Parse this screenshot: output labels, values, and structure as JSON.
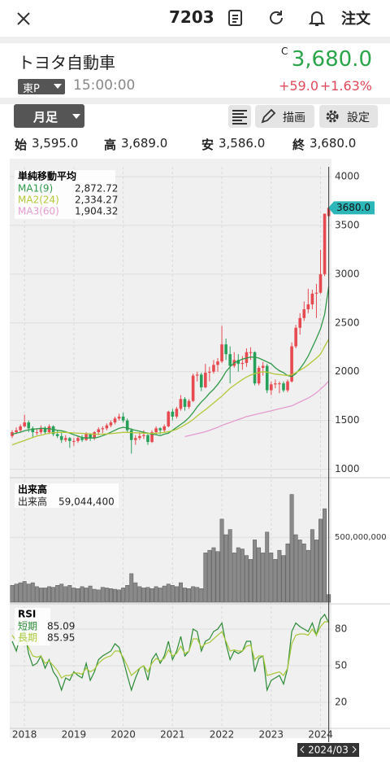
{
  "header": {
    "symbol": "7203",
    "order": "注文"
  },
  "quote": {
    "name": "トヨタ自動車",
    "flag": "C",
    "price": "3,680.0",
    "market": "東P",
    "time": "15:00:00",
    "change": "+59.0",
    "change_pct": "+1.63%"
  },
  "toolbar": {
    "period": "月足",
    "draw": "描画",
    "settings": "設定"
  },
  "ohlc": [
    {
      "label": "始",
      "value": "3,595.0"
    },
    {
      "label": "高",
      "value": "3,689.0"
    },
    {
      "label": "安",
      "value": "3,586.0"
    },
    {
      "label": "終",
      "value": "3,680.0"
    }
  ],
  "chart_data": [
    {
      "type": "candlestick",
      "title": "単純移動平均",
      "categories": [
        null,
        null,
        null,
        "2018",
        null,
        null,
        null,
        null,
        null,
        null,
        null,
        null,
        null,
        null,
        null,
        "2019",
        null,
        null,
        null,
        null,
        null,
        null,
        null,
        null,
        null,
        null,
        null,
        "2020",
        null,
        null,
        null,
        null,
        null,
        null,
        null,
        null,
        null,
        null,
        null,
        "2021",
        null,
        null,
        null,
        null,
        null,
        null,
        null,
        null,
        null,
        null,
        null,
        "2022",
        null,
        null,
        null,
        null,
        null,
        null,
        null,
        null,
        null,
        null,
        null,
        "2023",
        null,
        null,
        null,
        null,
        null,
        null,
        null,
        null,
        null,
        null,
        null,
        "2024",
        null,
        "2024/03"
      ],
      "candles": [
        [
          1340,
          1400,
          1320,
          1380
        ],
        [
          1380,
          1430,
          1360,
          1400
        ],
        [
          1400,
          1460,
          1380,
          1440
        ],
        [
          1440,
          1560,
          1430,
          1480
        ],
        [
          1480,
          1500,
          1380,
          1420
        ],
        [
          1420,
          1440,
          1330,
          1380
        ],
        [
          1380,
          1420,
          1350,
          1380
        ],
        [
          1380,
          1450,
          1360,
          1420
        ],
        [
          1420,
          1440,
          1360,
          1380
        ],
        [
          1380,
          1460,
          1360,
          1440
        ],
        [
          1440,
          1450,
          1340,
          1360
        ],
        [
          1360,
          1400,
          1320,
          1340
        ],
        [
          1340,
          1380,
          1270,
          1300
        ],
        [
          1300,
          1350,
          1280,
          1320
        ],
        [
          1320,
          1330,
          1220,
          1290
        ],
        [
          1290,
          1320,
          1240,
          1290
        ],
        [
          1290,
          1340,
          1270,
          1320
        ],
        [
          1320,
          1350,
          1280,
          1300
        ],
        [
          1300,
          1380,
          1290,
          1360
        ],
        [
          1360,
          1370,
          1290,
          1320
        ],
        [
          1320,
          1390,
          1300,
          1380
        ],
        [
          1380,
          1430,
          1350,
          1410
        ],
        [
          1410,
          1440,
          1370,
          1420
        ],
        [
          1420,
          1470,
          1400,
          1450
        ],
        [
          1450,
          1500,
          1430,
          1480
        ],
        [
          1480,
          1540,
          1460,
          1520
        ],
        [
          1520,
          1570,
          1500,
          1540
        ],
        [
          1540,
          1580,
          1480,
          1500
        ],
        [
          1500,
          1520,
          1380,
          1400
        ],
        [
          1400,
          1420,
          1160,
          1300
        ],
        [
          1300,
          1350,
          1250,
          1320
        ],
        [
          1320,
          1380,
          1300,
          1340
        ],
        [
          1340,
          1400,
          1310,
          1350
        ],
        [
          1350,
          1360,
          1250,
          1280
        ],
        [
          1280,
          1400,
          1270,
          1380
        ],
        [
          1380,
          1440,
          1350,
          1420
        ],
        [
          1420,
          1430,
          1360,
          1400
        ],
        [
          1400,
          1460,
          1380,
          1440
        ],
        [
          1440,
          1600,
          1430,
          1590
        ],
        [
          1590,
          1620,
          1500,
          1540
        ],
        [
          1540,
          1640,
          1520,
          1620
        ],
        [
          1620,
          1760,
          1600,
          1720
        ],
        [
          1720,
          1740,
          1600,
          1640
        ],
        [
          1640,
          1720,
          1620,
          1700
        ],
        [
          1700,
          1980,
          1690,
          1960
        ],
        [
          1960,
          2000,
          1900,
          1970
        ],
        [
          1970,
          1990,
          1800,
          1840
        ],
        [
          1840,
          2080,
          1830,
          1990
        ],
        [
          1990,
          2050,
          1900,
          2000
        ],
        [
          2000,
          2120,
          1980,
          2070
        ],
        [
          2070,
          2140,
          2000,
          2105
        ],
        [
          2105,
          2470,
          2090,
          2280
        ],
        [
          2280,
          2340,
          2120,
          2180
        ],
        [
          2180,
          2260,
          1880,
          2060
        ],
        [
          2060,
          2200,
          2040,
          2120
        ],
        [
          2120,
          2180,
          2000,
          2080
        ],
        [
          2080,
          2160,
          2020,
          2090
        ],
        [
          2090,
          2240,
          2050,
          2200
        ],
        [
          2200,
          2250,
          2120,
          2200
        ],
        [
          2200,
          2210,
          1860,
          1880
        ],
        [
          1880,
          2060,
          1860,
          2040
        ],
        [
          2040,
          2100,
          1960,
          2060
        ],
        [
          2060,
          2080,
          1780,
          1810
        ],
        [
          1810,
          1900,
          1760,
          1870
        ],
        [
          1870,
          1920,
          1830,
          1880
        ],
        [
          1880,
          1900,
          1780,
          1880
        ],
        [
          1880,
          1900,
          1790,
          1810
        ],
        [
          1810,
          1920,
          1790,
          1900
        ],
        [
          1900,
          2300,
          1890,
          2260
        ],
        [
          2260,
          2480,
          2240,
          2450
        ],
        [
          2450,
          2600,
          2380,
          2550
        ],
        [
          2550,
          2720,
          2520,
          2640
        ],
        [
          2640,
          2850,
          2600,
          2690
        ],
        [
          2690,
          2840,
          2640,
          2800
        ],
        [
          2800,
          2900,
          2550,
          2810
        ],
        [
          2810,
          3250,
          2800,
          3000
        ],
        [
          3000,
          3620,
          2980,
          3620
        ],
        [
          3595,
          3689,
          3586,
          3680
        ]
      ],
      "up_color": "#e64a50",
      "down_color": "#27a05a",
      "series": [
        {
          "name": "MA1(9)",
          "color": "#2e9a48",
          "current": {
            "value": 2872.72,
            "label": "2,872.72"
          },
          "values": [
            1360,
            1370,
            1380,
            1395,
            1405,
            1410,
            1415,
            1420,
            1420,
            1415,
            1410,
            1400,
            1395,
            1385,
            1370,
            1355,
            1340,
            1325,
            1320,
            1320,
            1320,
            1330,
            1345,
            1360,
            1380,
            1400,
            1420,
            1430,
            1425,
            1410,
            1400,
            1390,
            1380,
            1370,
            1360,
            1355,
            1345,
            1360,
            1370,
            1400,
            1430,
            1460,
            1490,
            1530,
            1580,
            1640,
            1690,
            1730,
            1780,
            1820,
            1870,
            1930,
            2000,
            2050,
            2090,
            2110,
            2130,
            2140,
            2150,
            2150,
            2140,
            2120,
            2100,
            2080,
            2040,
            2010,
            1990,
            1960,
            1950,
            1980,
            2030,
            2090,
            2160,
            2250,
            2340,
            2440,
            2590,
            2872.72
          ]
        },
        {
          "name": "MA2(24)",
          "color": "#b5c73a",
          "current": {
            "value": 2334.27,
            "label": "2,334.27"
          },
          "values": [
            1250,
            1265,
            1280,
            1295,
            1310,
            1325,
            1340,
            1350,
            1360,
            1370,
            1375,
            1378,
            1378,
            1378,
            1375,
            1372,
            1370,
            1368,
            1365,
            1362,
            1360,
            1360,
            1360,
            1362,
            1365,
            1370,
            1375,
            1378,
            1378,
            1376,
            1374,
            1372,
            1370,
            1368,
            1368,
            1370,
            1372,
            1378,
            1385,
            1395,
            1410,
            1430,
            1455,
            1480,
            1510,
            1545,
            1580,
            1610,
            1645,
            1680,
            1715,
            1750,
            1790,
            1830,
            1860,
            1890,
            1920,
            1945,
            1965,
            1980,
            1990,
            2000,
            1995,
            1985,
            1975,
            1970,
            1965,
            1960,
            1970,
            1990,
            2015,
            2040,
            2070,
            2105,
            2140,
            2180,
            2260,
            2334.27
          ]
        },
        {
          "name": "MA3(60)",
          "color": "#e49ccf",
          "current": {
            "value": 1904.32,
            "label": "1,904.32"
          },
          "values": [
            null,
            null,
            null,
            null,
            null,
            null,
            null,
            null,
            null,
            null,
            null,
            null,
            null,
            null,
            null,
            null,
            null,
            null,
            null,
            null,
            null,
            null,
            null,
            null,
            null,
            null,
            null,
            null,
            null,
            null,
            null,
            null,
            null,
            null,
            null,
            null,
            null,
            null,
            null,
            null,
            null,
            null,
            1335,
            1345,
            1355,
            1365,
            1375,
            1385,
            1400,
            1415,
            1430,
            1450,
            1465,
            1480,
            1495,
            1510,
            1525,
            1540,
            1550,
            1560,
            1570,
            1580,
            1590,
            1600,
            1610,
            1620,
            1630,
            1640,
            1650,
            1670,
            1690,
            1710,
            1730,
            1755,
            1785,
            1820,
            1860,
            1904.32
          ]
        }
      ],
      "ylim": [
        930,
        4100
      ],
      "yticks": [
        1000,
        1500,
        2000,
        2500,
        3000,
        3500,
        4000
      ],
      "last_price": {
        "value": 3680,
        "label": "3680.0"
      },
      "grid": true
    },
    {
      "type": "bar",
      "title": "出来高",
      "series": [
        {
          "name": "出来高",
          "color": "#8a8a8a",
          "current": {
            "value": 59044400,
            "label": "59,044,400"
          },
          "values": [
            130000000,
            140000000,
            150000000,
            160000000,
            140000000,
            150000000,
            120000000,
            110000000,
            110000000,
            120000000,
            115000000,
            130000000,
            140000000,
            120000000,
            130000000,
            110000000,
            105000000,
            120000000,
            110000000,
            125000000,
            100000000,
            95000000,
            115000000,
            110000000,
            105000000,
            100000000,
            95000000,
            110000000,
            130000000,
            220000000,
            150000000,
            120000000,
            110000000,
            115000000,
            105000000,
            120000000,
            110000000,
            125000000,
            140000000,
            130000000,
            120000000,
            150000000,
            110000000,
            105000000,
            120000000,
            115000000,
            105000000,
            380000000,
            400000000,
            420000000,
            390000000,
            640000000,
            520000000,
            560000000,
            380000000,
            420000000,
            410000000,
            360000000,
            330000000,
            480000000,
            420000000,
            380000000,
            540000000,
            380000000,
            330000000,
            400000000,
            360000000,
            450000000,
            830000000,
            520000000,
            480000000,
            450000000,
            400000000,
            560000000,
            480000000,
            640000000,
            720000000,
            59044400
          ]
        }
      ],
      "ylim": [
        0,
        940000000
      ],
      "yticks": [
        {
          "value": 500000000,
          "label": "500,000,000"
        }
      ]
    },
    {
      "type": "line",
      "title": "RSI",
      "series": [
        {
          "name": "短期",
          "color": "#2b8a35",
          "current": {
            "value": 85.09,
            "label": "85.09"
          },
          "values": [
            70,
            62,
            75,
            78,
            60,
            50,
            52,
            58,
            48,
            55,
            45,
            40,
            30,
            40,
            38,
            45,
            42,
            40,
            52,
            38,
            45,
            55,
            58,
            60,
            62,
            68,
            65,
            55,
            42,
            30,
            40,
            48,
            50,
            38,
            55,
            60,
            52,
            58,
            70,
            55,
            62,
            74,
            58,
            62,
            80,
            78,
            62,
            70,
            72,
            78,
            80,
            85,
            68,
            55,
            62,
            60,
            62,
            70,
            70,
            45,
            56,
            58,
            30,
            38,
            40,
            42,
            35,
            48,
            78,
            85,
            82,
            80,
            78,
            85,
            75,
            88,
            92,
            85.09
          ]
        },
        {
          "name": "長期",
          "color": "#a9c83a",
          "current": {
            "value": 85.95,
            "label": "85.95"
          },
          "values": [
            75,
            70,
            72,
            73,
            65,
            58,
            57,
            58,
            52,
            54,
            50,
            46,
            40,
            42,
            42,
            44,
            44,
            43,
            48,
            45,
            47,
            52,
            55,
            57,
            58,
            62,
            62,
            57,
            50,
            42,
            45,
            48,
            50,
            45,
            52,
            56,
            54,
            56,
            63,
            58,
            60,
            66,
            60,
            62,
            72,
            72,
            65,
            68,
            69,
            72,
            75,
            78,
            70,
            62,
            63,
            62,
            62,
            66,
            67,
            55,
            58,
            58,
            42,
            43,
            44,
            45,
            42,
            48,
            68,
            75,
            76,
            76,
            75,
            80,
            75,
            82,
            86,
            85.95
          ]
        }
      ],
      "ylim": [
        0,
        100
      ],
      "yticks": [
        20,
        50,
        80
      ]
    }
  ]
}
